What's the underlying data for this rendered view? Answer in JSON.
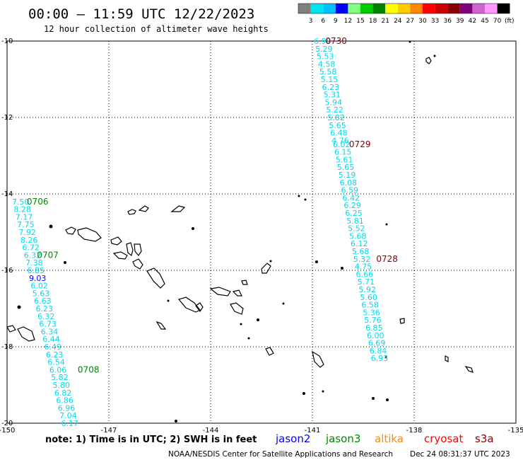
{
  "title": "00:00 – 11:59 UTC 12/22/2023",
  "subtitle": "12 hour collection of altimeter wave heights",
  "footer_note": "note: 1) Time is in UTC; 2) SWH is in feet",
  "credit": "NOAA/NESDIS Center for Satellite Applications and Research",
  "timestamp": "Dec 24 08:31:37 UTC 2023",
  "legend_mission": [
    {
      "name": "jason2",
      "color": "#0000ff"
    },
    {
      "name": "jason3",
      "color": "#008800"
    },
    {
      "name": "altika",
      "color": "#ff8800"
    },
    {
      "name": "cryosat",
      "color": "#ff0000"
    },
    {
      "name": "s3a",
      "color": "#880000"
    }
  ],
  "colorbar": {
    "unit": "(ft)",
    "labels": [
      "3",
      "6",
      "9",
      "12",
      "15",
      "18",
      "21",
      "24",
      "27",
      "30",
      "33",
      "36",
      "39",
      "42",
      "45",
      "70"
    ],
    "colors": [
      "#808080",
      "#00e5ee",
      "#00c0ff",
      "#0000ff",
      "#80ff80",
      "#00cc00",
      "#008000",
      "#ffff00",
      "#ffcc00",
      "#ff8800",
      "#ff0000",
      "#cc0000",
      "#880000",
      "#800080",
      "#cc66cc",
      "#ff99ff",
      "#000000"
    ]
  },
  "chart_data": {
    "type": "scatter",
    "xlim": [
      -150,
      -135
    ],
    "ylim": [
      -20,
      -10
    ],
    "xticks": [
      "-150",
      "-147",
      "-144",
      "-141",
      "-138",
      "-135"
    ],
    "yticks": [
      "-10",
      "-12",
      "-14",
      "-16",
      "-18",
      "-20"
    ],
    "grid": true,
    "tracks": [
      {
        "color": "#00d8ee",
        "points": [
          {
            "lon": -140.7,
            "lat": -10.0,
            "v": "6.98"
          },
          {
            "lon": -140.66,
            "lat": -10.2,
            "v": "5.29"
          },
          {
            "lon": -140.62,
            "lat": -10.4,
            "v": "5.53"
          },
          {
            "lon": -140.58,
            "lat": -10.6,
            "v": "4.58"
          },
          {
            "lon": -140.54,
            "lat": -10.8,
            "v": "5.58"
          },
          {
            "lon": -140.5,
            "lat": -11.0,
            "v": "5.15"
          },
          {
            "lon": -140.46,
            "lat": -11.2,
            "v": "6.23"
          },
          {
            "lon": -140.42,
            "lat": -11.4,
            "v": "5.31"
          },
          {
            "lon": -140.38,
            "lat": -11.6,
            "v": "5.94"
          },
          {
            "lon": -140.34,
            "lat": -11.8,
            "v": "5.22"
          },
          {
            "lon": -140.3,
            "lat": -12.0,
            "v": "5.82"
          },
          {
            "lon": -140.26,
            "lat": -12.2,
            "v": "5.65"
          },
          {
            "lon": -140.22,
            "lat": -12.4,
            "v": "6.48"
          },
          {
            "lon": -140.18,
            "lat": -12.6,
            "v": "4.76"
          },
          {
            "lon": -140.14,
            "lat": -12.7,
            "v": "6.02"
          },
          {
            "lon": -140.1,
            "lat": -12.9,
            "v": "6.15"
          },
          {
            "lon": -140.06,
            "lat": -13.1,
            "v": "5.61"
          },
          {
            "lon": -140.02,
            "lat": -13.3,
            "v": "5.65"
          },
          {
            "lon": -139.98,
            "lat": -13.5,
            "v": "5.19"
          },
          {
            "lon": -139.94,
            "lat": -13.7,
            "v": "6.08"
          },
          {
            "lon": -139.9,
            "lat": -13.9,
            "v": "6.59"
          },
          {
            "lon": -139.86,
            "lat": -14.1,
            "v": "6.42"
          },
          {
            "lon": -139.82,
            "lat": -14.3,
            "v": "6.29"
          },
          {
            "lon": -139.78,
            "lat": -14.5,
            "v": "6.25"
          },
          {
            "lon": -139.74,
            "lat": -14.7,
            "v": "5.81"
          },
          {
            "lon": -139.7,
            "lat": -14.9,
            "v": "5.52"
          },
          {
            "lon": -139.66,
            "lat": -15.1,
            "v": "5.68"
          },
          {
            "lon": -139.62,
            "lat": -15.3,
            "v": "6.12"
          },
          {
            "lon": -139.58,
            "lat": -15.5,
            "v": "5.68"
          },
          {
            "lon": -139.54,
            "lat": -15.7,
            "v": "5.32"
          },
          {
            "lon": -139.5,
            "lat": -15.9,
            "v": "4.75"
          },
          {
            "lon": -139.46,
            "lat": -16.1,
            "v": "6.66"
          },
          {
            "lon": -139.42,
            "lat": -16.3,
            "v": "5.71"
          },
          {
            "lon": -139.38,
            "lat": -16.5,
            "v": "5.92"
          },
          {
            "lon": -139.34,
            "lat": -16.7,
            "v": "5.60"
          },
          {
            "lon": -139.3,
            "lat": -16.9,
            "v": "6.58"
          },
          {
            "lon": -139.26,
            "lat": -17.1,
            "v": "5.36"
          },
          {
            "lon": -139.22,
            "lat": -17.3,
            "v": "5.76"
          },
          {
            "lon": -139.18,
            "lat": -17.5,
            "v": "6.85"
          },
          {
            "lon": -139.14,
            "lat": -17.7,
            "v": "6.00"
          },
          {
            "lon": -139.1,
            "lat": -17.9,
            "v": "6.69"
          },
          {
            "lon": -139.06,
            "lat": -18.1,
            "v": "6.84"
          },
          {
            "lon": -139.02,
            "lat": -18.3,
            "v": "6.93"
          }
        ]
      },
      {
        "color": "#00d8ee",
        "points": [
          {
            "lon": -149.6,
            "lat": -14.2,
            "v": "7.50"
          },
          {
            "lon": -149.55,
            "lat": -14.4,
            "v": "8.28"
          },
          {
            "lon": -149.5,
            "lat": -14.6,
            "v": "7.17"
          },
          {
            "lon": -149.45,
            "lat": -14.8,
            "v": "7.75"
          },
          {
            "lon": -149.4,
            "lat": -15.0,
            "v": "7.92"
          },
          {
            "lon": -149.35,
            "lat": -15.2,
            "v": "8.26"
          },
          {
            "lon": -149.3,
            "lat": -15.4,
            "v": "6.72"
          },
          {
            "lon": -149.25,
            "lat": -15.6,
            "v": "6.32"
          },
          {
            "lon": -149.2,
            "lat": -15.8,
            "v": "7.38"
          },
          {
            "lon": -149.15,
            "lat": -16.0,
            "v": "6.85"
          },
          {
            "lon": -149.1,
            "lat": -16.2,
            "v": "9.03",
            "color": "#0000ff"
          },
          {
            "lon": -149.05,
            "lat": -16.4,
            "v": "6.02"
          },
          {
            "lon": -149.0,
            "lat": -16.6,
            "v": "5.63"
          },
          {
            "lon": -148.95,
            "lat": -16.8,
            "v": "6.63"
          },
          {
            "lon": -148.9,
            "lat": -17.0,
            "v": "6.23"
          },
          {
            "lon": -148.85,
            "lat": -17.2,
            "v": "6.32"
          },
          {
            "lon": -148.8,
            "lat": -17.4,
            "v": "6.73"
          },
          {
            "lon": -148.75,
            "lat": -17.6,
            "v": "6.34"
          },
          {
            "lon": -148.7,
            "lat": -17.8,
            "v": "6.44"
          },
          {
            "lon": -148.65,
            "lat": -18.0,
            "v": "6.49"
          },
          {
            "lon": -148.6,
            "lat": -18.2,
            "v": "6.23"
          },
          {
            "lon": -148.55,
            "lat": -18.4,
            "v": "6.54"
          },
          {
            "lon": -148.5,
            "lat": -18.6,
            "v": "6.06"
          },
          {
            "lon": -148.45,
            "lat": -18.8,
            "v": "5.82"
          },
          {
            "lon": -148.4,
            "lat": -19.0,
            "v": "5.80"
          },
          {
            "lon": -148.35,
            "lat": -19.2,
            "v": "6.82"
          },
          {
            "lon": -148.3,
            "lat": -19.4,
            "v": "6.86"
          },
          {
            "lon": -148.25,
            "lat": -19.6,
            "v": "6.96"
          },
          {
            "lon": -148.2,
            "lat": -19.8,
            "v": "7.04"
          },
          {
            "lon": -148.15,
            "lat": -20.0,
            "v": "6.17"
          }
        ]
      }
    ],
    "time_labels": [
      {
        "text": "0730",
        "lon": -140.3,
        "lat": -10.0,
        "color": "#880000"
      },
      {
        "text": "0729",
        "lon": -139.6,
        "lat": -12.7,
        "color": "#880000"
      },
      {
        "text": "0728",
        "lon": -138.8,
        "lat": -15.7,
        "color": "#880000"
      },
      {
        "text": "0706",
        "lon": -149.1,
        "lat": -14.2,
        "color": "#008800"
      },
      {
        "text": "0707",
        "lon": -148.8,
        "lat": -15.6,
        "color": "#008800"
      },
      {
        "text": "0708",
        "lon": -147.6,
        "lat": -18.6,
        "color": "#008800"
      }
    ]
  }
}
